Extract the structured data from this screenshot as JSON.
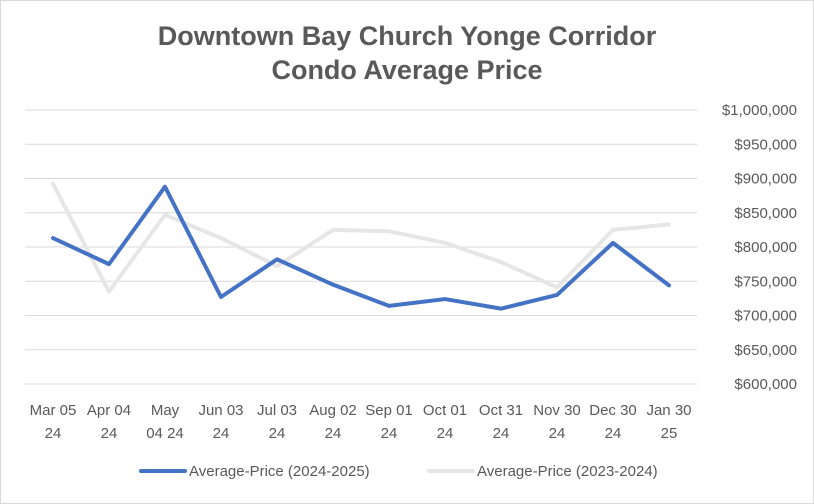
{
  "chart_data": {
    "type": "line",
    "title_lines": [
      "Downtown Bay Church Yonge Corridor",
      "Condo Average Price"
    ],
    "xlabel": "",
    "ylabel": "",
    "y_axis_position": "right",
    "ylim": [
      600000,
      1000000
    ],
    "yticks": [
      600000,
      650000,
      700000,
      750000,
      800000,
      850000,
      900000,
      950000,
      1000000
    ],
    "ytick_labels": [
      "$600,000",
      "$650,000",
      "$700,000",
      "$750,000",
      "$800,000",
      "$850,000",
      "$900,000",
      "$950,000",
      "$1,000,000"
    ],
    "grid": true,
    "categories": [
      [
        "Mar 05",
        "24"
      ],
      [
        "Apr 04",
        "24"
      ],
      [
        "May",
        "04 24"
      ],
      [
        "Jun 03",
        "24"
      ],
      [
        "Jul 03",
        "24"
      ],
      [
        "Aug 02",
        "24"
      ],
      [
        "Sep 01",
        "24"
      ],
      [
        "Oct 01",
        "24"
      ],
      [
        "Oct 31",
        "24"
      ],
      [
        "Nov 30",
        "24"
      ],
      [
        "Dec 30",
        "24"
      ],
      [
        "Jan 30",
        "25"
      ]
    ],
    "series": [
      {
        "name": "Average-Price (2024-2025)",
        "color": "#4472c4",
        "values": [
          813000,
          775000,
          888000,
          727000,
          782000,
          745000,
          714000,
          724000,
          710000,
          730000,
          806000,
          744000
        ]
      },
      {
        "name": "Average-Price (2023-2024)",
        "color": "#e7e6e6",
        "values": [
          892000,
          735000,
          847000,
          813000,
          772000,
          825000,
          823000,
          806000,
          778000,
          741000,
          825000,
          833000
        ]
      }
    ],
    "legend_position": "bottom"
  }
}
